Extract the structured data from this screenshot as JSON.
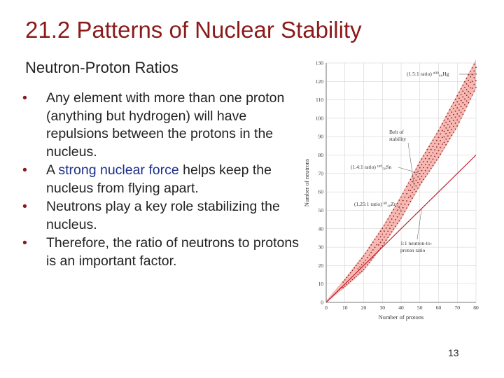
{
  "slide": {
    "title": "21.2  Patterns of Nuclear Stability",
    "subtitle": "Neutron-Proton Ratios",
    "page_number": "13"
  },
  "bullets": [
    {
      "bullet": "•",
      "before": "Any element with more than one proton (anything but hydrogen) will have repulsions between the protons in the nucleus.",
      "highlight": "",
      "after": ""
    },
    {
      "bullet": "•",
      "before": "A ",
      "highlight": "strong nuclear force",
      "after": " helps keep the nucleus from flying apart."
    },
    {
      "bullet": "•",
      "before": "Neutrons play a key role stabilizing the nucleus.",
      "highlight": "",
      "after": ""
    },
    {
      "bullet": "•",
      "before": "Therefore, the ratio of neutrons to protons is an important factor.",
      "highlight": "",
      "after": ""
    }
  ],
  "chart_data": {
    "type": "scatter",
    "xlabel": "Number of protons",
    "ylabel": "Number of neutrons",
    "xlim": [
      0,
      80
    ],
    "ylim": [
      0,
      130
    ],
    "x_ticks": [
      0,
      10,
      20,
      30,
      40,
      50,
      60,
      70,
      80
    ],
    "y_ticks": [
      0,
      10,
      20,
      30,
      40,
      50,
      60,
      70,
      80,
      90,
      100,
      110,
      120,
      130
    ],
    "belt_of_stability": {
      "label_line1": "Belt of",
      "label_line2": "stability",
      "center": [
        [
          0,
          0
        ],
        [
          10,
          10
        ],
        [
          20,
          21
        ],
        [
          30,
          35
        ],
        [
          40,
          51
        ],
        [
          50,
          70
        ],
        [
          60,
          86
        ],
        [
          70,
          104
        ],
        [
          80,
          124
        ]
      ],
      "upper": [
        [
          0,
          1
        ],
        [
          10,
          13
        ],
        [
          20,
          26
        ],
        [
          30,
          41
        ],
        [
          40,
          58
        ],
        [
          50,
          77
        ],
        [
          60,
          94
        ],
        [
          70,
          113
        ],
        [
          80,
          132
        ]
      ],
      "lower": [
        [
          0,
          0
        ],
        [
          10,
          8
        ],
        [
          20,
          17
        ],
        [
          30,
          30
        ],
        [
          40,
          45
        ],
        [
          50,
          63
        ],
        [
          60,
          78
        ],
        [
          70,
          95
        ],
        [
          80,
          116
        ]
      ],
      "color": "#f4a29a"
    },
    "reference_line": {
      "label_line1": "1:1 neutron-to-",
      "label_line2": "proton ratio",
      "points": [
        [
          0,
          0
        ],
        [
          80,
          80
        ]
      ],
      "color": "#c0142a"
    },
    "annotations": [
      {
        "text": "(1.5:1 ratio) ²⁰⁰₈₀Hg",
        "x": 80,
        "y": 120
      },
      {
        "text": "(1.4:1 ratio) ¹²⁰₅₀Sn",
        "x": 50,
        "y": 70
      },
      {
        "text": "(1.25:1 ratio) ⁹⁰₄₀Zr",
        "x": 40,
        "y": 50
      }
    ],
    "dot_color": "#8b2525",
    "grid": true,
    "grid_color": "#cccccc"
  }
}
